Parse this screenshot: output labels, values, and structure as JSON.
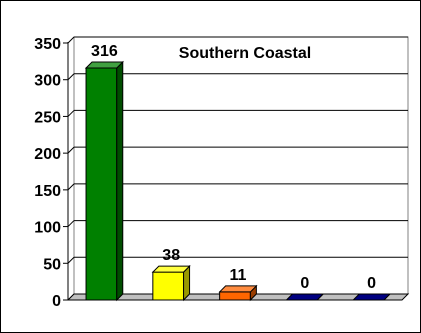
{
  "chart_data": {
    "type": "bar",
    "title": "Southern Coastal",
    "categories": [
      "",
      "",
      "",
      "",
      ""
    ],
    "values": [
      316,
      38,
      11,
      0,
      0
    ],
    "data_labels": [
      "316",
      "38",
      "11",
      "0",
      "0"
    ],
    "colors": [
      "#008000",
      "#ffff00",
      "#ff6600",
      "#000080",
      "#000080"
    ],
    "ylim": [
      0,
      350
    ],
    "yticks": [
      0,
      50,
      100,
      150,
      200,
      250,
      300,
      350
    ],
    "grid": true,
    "legend": "none",
    "style": "3d"
  }
}
